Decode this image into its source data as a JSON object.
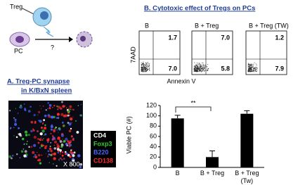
{
  "diagram": {
    "treg": "Treg",
    "pc": "PC",
    "question": "?"
  },
  "panel_a": {
    "title_line1": "A.  Treg-PC synapse",
    "title_line2": "in K/BxN spleen",
    "magnification": "X 800",
    "stains": [
      {
        "name": "CD4",
        "color": "#ffffff"
      },
      {
        "name": "Foxp3",
        "color": "#33cc33"
      },
      {
        "name": "B220",
        "color": "#4a66ff"
      },
      {
        "name": "CD138",
        "color": "#ff2a2a"
      }
    ]
  },
  "panel_b": {
    "title": "B. Cytotoxic effect of Tregs on PCs",
    "flow": {
      "y_label": "7AAD",
      "x_label": "Annexin V",
      "panels": [
        {
          "title": "B",
          "upper_right": "1.7",
          "lower_right": "7.0"
        },
        {
          "title": "B + Treg",
          "upper_right": "7.0",
          "lower_right": "5.8"
        },
        {
          "title": "B + Treg (TW)",
          "upper_right": "1.2",
          "lower_right": "7.9"
        }
      ]
    }
  },
  "chart_data": {
    "type": "bar",
    "y_label": "Viable PC (#)",
    "categories": [
      "B",
      "B + Treg",
      "B + Treg (Tw)"
    ],
    "values": [
      95,
      20,
      104
    ],
    "errors": [
      6,
      12,
      6
    ],
    "color": "#000000",
    "annotation": "**",
    "ylim": [
      0,
      120
    ],
    "yticks": [
      0,
      20,
      40,
      60,
      80,
      100,
      120
    ]
  }
}
